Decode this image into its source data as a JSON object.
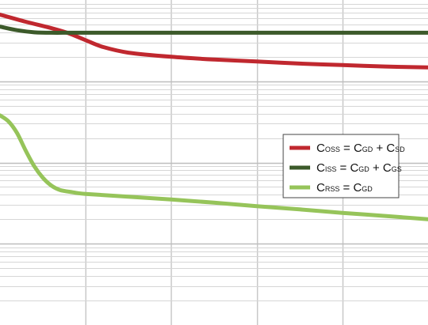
{
  "chart_data": {
    "type": "line",
    "title": "",
    "xlabel": "",
    "ylabel": "",
    "xscale": "linear",
    "yscale": "log",
    "xlim": [
      0,
      5
    ],
    "ylim": [
      1,
      10000
    ],
    "grid": true,
    "legend_position": "middle-right",
    "series": [
      {
        "legend_parts": [
          {
            "text": "C",
            "sub": "OSS"
          },
          {
            "text": " = C",
            "sub": "GD"
          },
          {
            "text": " + C",
            "sub": "SD"
          }
        ],
        "color": "#c0282f",
        "x": [
          0,
          0.3,
          0.6,
          0.8,
          1.0,
          1.2,
          1.5,
          2.0,
          2.5,
          3.0,
          3.5,
          4.0,
          4.5,
          5.0
        ],
        "y": [
          6600,
          5400,
          4500,
          3900,
          3200,
          2650,
          2250,
          2000,
          1850,
          1750,
          1650,
          1580,
          1520,
          1480
        ]
      },
      {
        "legend_parts": [
          {
            "text": "C",
            "sub": "ISS"
          },
          {
            "text": " = C",
            "sub": "GD"
          },
          {
            "text": " + C",
            "sub": "GS"
          }
        ],
        "color": "#3c5a2a",
        "x": [
          0,
          0.2,
          0.4,
          0.6,
          0.8,
          1.0,
          2.0,
          3.0,
          4.0,
          5.0
        ],
        "y": [
          4700,
          4250,
          4000,
          3950,
          3950,
          3950,
          3950,
          3950,
          3950,
          3950
        ]
      },
      {
        "legend_parts": [
          {
            "text": "C",
            "sub": "RSS"
          },
          {
            "text": " = C",
            "sub": "GD"
          }
        ],
        "color": "#96c45a",
        "x": [
          0,
          0.1,
          0.2,
          0.3,
          0.4,
          0.5,
          0.6,
          0.7,
          0.85,
          1.0,
          1.5,
          2.0,
          2.5,
          3.0,
          3.5,
          4.0,
          4.5,
          5.0
        ],
        "y": [
          380,
          320,
          230,
          140,
          90,
          65,
          52,
          46,
          43,
          41,
          38,
          35,
          32,
          29,
          26.5,
          24,
          22,
          20
        ]
      }
    ]
  }
}
